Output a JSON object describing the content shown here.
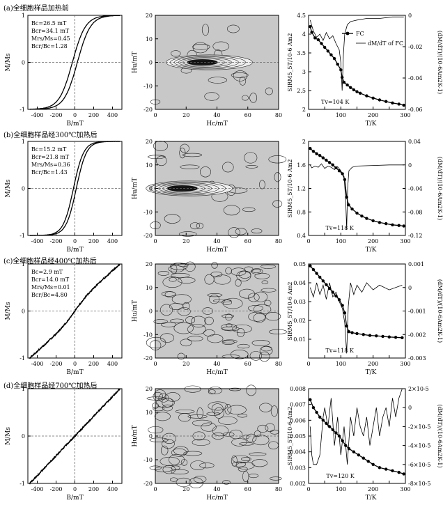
{
  "chart_data": [
    {
      "id": "a",
      "type": "line",
      "panel_title": "(a)全细胞样品加热前",
      "hysteresis": {
        "xlabel": "B/mT",
        "ylabel": "M/Ms",
        "xlim": [
          -500,
          500
        ],
        "ylim": [
          -1,
          1
        ],
        "xticks": [
          "-400",
          "-200",
          "0",
          "200",
          "400"
        ],
        "yticks": [
          "-1",
          "0",
          "1"
        ],
        "params": [
          "Bc=26.5 mT",
          "Bcr=34.1 mT",
          "Mrs/Ms=0.45",
          "Bcr/Bc=1.28"
        ],
        "Bc": 26.5,
        "Mr": 0.45,
        "linear": 0.0
      },
      "forc": {
        "xlabel": "Hc/mT",
        "ylabel": "Hu/mT",
        "xlim": [
          0,
          80
        ],
        "ylim": [
          -20,
          20
        ],
        "xticks": [
          "0",
          "20",
          "40",
          "60",
          "80"
        ],
        "yticks": [
          "-20",
          "-10",
          "0",
          "10",
          "20"
        ],
        "peak_hc": 35,
        "peak_hu": 0,
        "noise": 0.1
      },
      "lowtemp": {
        "xlabel": "T/K",
        "ylabel": "SIRM5_5T/10-6 Am2",
        "ylabel2": "(dM/dT)/(10-6Am2K-1)",
        "xlim": [
          0,
          300
        ],
        "ylim": [
          2,
          4.5
        ],
        "y2lim": [
          -0.06,
          0
        ],
        "xticks": [
          "0",
          "50",
          "100",
          "150",
          "200",
          "250",
          "300"
        ],
        "yticks": [
          "2",
          "2.5",
          "3",
          "3.5",
          "4",
          "4.5"
        ],
        "y2ticks": [
          "0",
          "-0.02",
          "-0.04",
          "-0.06"
        ],
        "legend": [
          "FC",
          "dM/dT of FC"
        ],
        "tv_label": "Tv=104 K",
        "Tv": 104,
        "fc": [
          [
            5,
            4.2
          ],
          [
            10,
            4.05
          ],
          [
            20,
            3.9
          ],
          [
            30,
            3.85
          ],
          [
            40,
            3.75
          ],
          [
            50,
            3.65
          ],
          [
            60,
            3.55
          ],
          [
            70,
            3.45
          ],
          [
            80,
            3.35
          ],
          [
            90,
            3.2
          ],
          [
            100,
            3.05
          ],
          [
            104,
            2.85
          ],
          [
            110,
            2.72
          ],
          [
            120,
            2.65
          ],
          [
            130,
            2.58
          ],
          [
            140,
            2.52
          ],
          [
            150,
            2.47
          ],
          [
            160,
            2.43
          ],
          [
            180,
            2.36
          ],
          [
            200,
            2.3
          ],
          [
            220,
            2.25
          ],
          [
            240,
            2.21
          ],
          [
            260,
            2.17
          ],
          [
            280,
            2.14
          ],
          [
            295,
            2.11
          ]
        ],
        "deriv": [
          [
            5,
            -0.003
          ],
          [
            15,
            -0.01
          ],
          [
            25,
            -0.014
          ],
          [
            35,
            -0.012
          ],
          [
            45,
            -0.016
          ],
          [
            55,
            -0.011
          ],
          [
            65,
            -0.015
          ],
          [
            75,
            -0.013
          ],
          [
            85,
            -0.018
          ],
          [
            95,
            -0.022
          ],
          [
            100,
            -0.03
          ],
          [
            104,
            -0.048
          ],
          [
            108,
            -0.025
          ],
          [
            112,
            -0.012
          ],
          [
            120,
            -0.006
          ],
          [
            130,
            -0.004
          ],
          [
            150,
            -0.003
          ],
          [
            180,
            -0.002
          ],
          [
            220,
            -0.002
          ],
          [
            260,
            -0.001
          ],
          [
            295,
            -0.001
          ]
        ]
      }
    },
    {
      "id": "b",
      "type": "line",
      "panel_title": "(b)全细胞样品经300℃加热后",
      "hysteresis": {
        "xlabel": "B/mT",
        "ylabel": "M/Ms",
        "xlim": [
          -500,
          500
        ],
        "ylim": [
          -1,
          1
        ],
        "xticks": [
          "-400",
          "-200",
          "0",
          "200",
          "400"
        ],
        "yticks": [
          "-1",
          "0",
          "1"
        ],
        "params": [
          "Bc=15.2 mT",
          "Bcr=21.8 mT",
          "Mrs/Ms=0.36",
          "Bcr/Bc=1.43"
        ],
        "Bc": 15.2,
        "Mr": 0.36,
        "linear": 0.0
      },
      "forc": {
        "xlabel": "Hc/mT",
        "ylabel": "Hu/mT",
        "xlim": [
          0,
          80
        ],
        "ylim": [
          -20,
          20
        ],
        "xticks": [
          "0",
          "20",
          "40",
          "60",
          "80"
        ],
        "yticks": [
          "-20",
          "-10",
          "0",
          "10",
          "20"
        ],
        "peak_hc": 22,
        "peak_hu": 0,
        "noise": 0.25
      },
      "lowtemp": {
        "xlabel": "T/K",
        "ylabel": "SIRM5_5T/10-6 Am2",
        "ylabel2": "(dM/dT)/(10-6Am2K-1)",
        "xlim": [
          0,
          300
        ],
        "ylim": [
          0.4,
          2
        ],
        "y2lim": [
          -0.12,
          0.04
        ],
        "xticks": [
          "0",
          "50",
          "100",
          "150",
          "200",
          "250",
          "300"
        ],
        "yticks": [
          "0.4",
          "0.8",
          "1.2",
          "1.6",
          "2"
        ],
        "y2ticks": [
          "0.04",
          "0",
          "-0.04",
          "-0.08",
          "-0.12"
        ],
        "legend": [],
        "tv_label": "Tv=118 K",
        "Tv": 118,
        "fc": [
          [
            5,
            1.88
          ],
          [
            15,
            1.83
          ],
          [
            25,
            1.79
          ],
          [
            35,
            1.76
          ],
          [
            45,
            1.72
          ],
          [
            55,
            1.68
          ],
          [
            65,
            1.64
          ],
          [
            75,
            1.6
          ],
          [
            85,
            1.55
          ],
          [
            95,
            1.5
          ],
          [
            105,
            1.45
          ],
          [
            112,
            1.35
          ],
          [
            118,
            1.05
          ],
          [
            124,
            0.92
          ],
          [
            135,
            0.85
          ],
          [
            150,
            0.78
          ],
          [
            165,
            0.73
          ],
          [
            180,
            0.69
          ],
          [
            200,
            0.65
          ],
          [
            220,
            0.62
          ],
          [
            240,
            0.6
          ],
          [
            260,
            0.58
          ],
          [
            280,
            0.57
          ],
          [
            295,
            0.56
          ]
        ],
        "deriv": [
          [
            5,
            0.0
          ],
          [
            10,
            -0.005
          ],
          [
            20,
            -0.002
          ],
          [
            30,
            -0.004
          ],
          [
            40,
            0.002
          ],
          [
            50,
            -0.006
          ],
          [
            60,
            -0.002
          ],
          [
            70,
            -0.004
          ],
          [
            80,
            -0.008
          ],
          [
            90,
            -0.003
          ],
          [
            100,
            -0.01
          ],
          [
            110,
            -0.02
          ],
          [
            115,
            -0.06
          ],
          [
            118,
            -0.11
          ],
          [
            121,
            -0.04
          ],
          [
            125,
            -0.01
          ],
          [
            135,
            -0.004
          ],
          [
            150,
            -0.002
          ],
          [
            200,
            -0.001
          ],
          [
            250,
            0.0
          ],
          [
            295,
            0.0
          ]
        ]
      }
    },
    {
      "id": "c",
      "type": "line",
      "panel_title": "(c)全细胞样品经400℃加热后",
      "hysteresis": {
        "xlabel": "B/mT",
        "ylabel": "M/Ms",
        "xlim": [
          -500,
          500
        ],
        "ylim": [
          -1,
          1
        ],
        "xticks": [
          "-400",
          "-200",
          "0",
          "200",
          "400"
        ],
        "yticks": [
          "-1",
          "0",
          "1"
        ],
        "params": [
          "Bc=2.9 mT",
          "Bcr=14.0 mT",
          "Mrs/Ms=0.01",
          "Bcr/Bc=4.80"
        ],
        "Bc": 2.9,
        "Mr": 0.01,
        "linear": 0.85
      },
      "forc": {
        "xlabel": "Hc/mT",
        "ylabel": "Hu/mT",
        "xlim": [
          0,
          80
        ],
        "ylim": [
          -20,
          20
        ],
        "xticks": [
          "0",
          "20",
          "40",
          "60",
          "80"
        ],
        "yticks": [
          "-20",
          "-10",
          "0",
          "10",
          "20"
        ],
        "peak_hc": null,
        "peak_hu": null,
        "noise": 1
      },
      "lowtemp": {
        "xlabel": "T/K",
        "ylabel": "SIRM5_5T/10-6 Am2",
        "ylabel2": "(dM/dT)/(10-6Am2K-1)",
        "xlim": [
          0,
          300
        ],
        "ylim": [
          0,
          0.05
        ],
        "y2lim": [
          -0.003,
          0.001
        ],
        "xticks": [
          "0",
          "50",
          "100",
          "150",
          "200",
          "250",
          "300"
        ],
        "yticks": [
          "0.01",
          "0.02",
          "0.03",
          "0.04",
          "0.05"
        ],
        "y2ticks": [
          "0.001",
          "0",
          "-0.001",
          "-0.002",
          "-0.003"
        ],
        "legend": [],
        "tv_label": "Tv=118 K",
        "Tv": 118,
        "fc": [
          [
            5,
            0.049
          ],
          [
            15,
            0.047
          ],
          [
            25,
            0.045
          ],
          [
            35,
            0.043
          ],
          [
            45,
            0.041
          ],
          [
            55,
            0.039
          ],
          [
            65,
            0.037
          ],
          [
            75,
            0.035
          ],
          [
            85,
            0.033
          ],
          [
            95,
            0.031
          ],
          [
            105,
            0.028
          ],
          [
            112,
            0.024
          ],
          [
            118,
            0.017
          ],
          [
            125,
            0.014
          ],
          [
            135,
            0.0135
          ],
          [
            150,
            0.013
          ],
          [
            170,
            0.0125
          ],
          [
            190,
            0.012
          ],
          [
            210,
            0.0118
          ],
          [
            230,
            0.0115
          ],
          [
            250,
            0.0112
          ],
          [
            270,
            0.011
          ],
          [
            290,
            0.0108
          ]
        ],
        "deriv": [
          [
            5,
            0.0
          ],
          [
            15,
            -0.0004
          ],
          [
            25,
            0.0002
          ],
          [
            35,
            -0.0003
          ],
          [
            45,
            0.0001
          ],
          [
            55,
            -0.0005
          ],
          [
            65,
            0.0002
          ],
          [
            75,
            -0.0004
          ],
          [
            85,
            -0.0002
          ],
          [
            95,
            -0.0006
          ],
          [
            105,
            -0.0009
          ],
          [
            112,
            -0.0015
          ],
          [
            118,
            -0.0028
          ],
          [
            123,
            -0.0008
          ],
          [
            130,
            0.0002
          ],
          [
            140,
            -0.0003
          ],
          [
            150,
            0.0001
          ],
          [
            165,
            -0.0002
          ],
          [
            180,
            0.0002
          ],
          [
            200,
            -0.0001
          ],
          [
            220,
            0.0001
          ],
          [
            250,
            -0.0001
          ],
          [
            290,
            0.0001
          ]
        ]
      }
    },
    {
      "id": "d",
      "type": "line",
      "panel_title": "(d)全细胞样品经700℃加热后",
      "hysteresis": {
        "xlabel": "B/mT",
        "ylabel": "M/Ms",
        "xlim": [
          -500,
          500
        ],
        "ylim": [
          -1,
          1
        ],
        "xticks": [
          "-400",
          "-200",
          "0",
          "200",
          "400"
        ],
        "yticks": [
          "-1",
          "0",
          "1"
        ],
        "params": [],
        "Bc": 0,
        "Mr": 0,
        "linear": 1.0
      },
      "forc": {
        "xlabel": "Hc/mT",
        "ylabel": "Hu/mT",
        "xlim": [
          0,
          80
        ],
        "ylim": [
          -20,
          20
        ],
        "xticks": [
          "0",
          "20",
          "40",
          "60",
          "80"
        ],
        "yticks": [
          "-20",
          "-10",
          "0",
          "10",
          "20"
        ],
        "peak_hc": null,
        "peak_hu": null,
        "noise": 1
      },
      "lowtemp": {
        "xlabel": "T/K",
        "ylabel": "SIRM5_5T/10-6 Am2",
        "ylabel2": "(dM/dT)/(10-6Am2K-1)",
        "xlim": [
          0,
          300
        ],
        "ylim": [
          0.002,
          0.008
        ],
        "y2lim": [
          -8e-05,
          2e-05
        ],
        "xticks": [
          "0",
          "50",
          "100",
          "150",
          "200",
          "250",
          "300"
        ],
        "yticks": [
          "0.002",
          "0.003",
          "0.004",
          "0.005",
          "0.006",
          "0.007",
          "0.008"
        ],
        "y2ticks": [
          "2×10-5",
          "0",
          "-2×10-5",
          "-4×10-5",
          "-6×10-5",
          "-8×10-5"
        ],
        "legend": [],
        "tv_label": "Tv=120 K",
        "Tv": 120,
        "fc": [
          [
            5,
            0.0073
          ],
          [
            15,
            0.0068
          ],
          [
            25,
            0.0065
          ],
          [
            35,
            0.0062
          ],
          [
            45,
            0.006
          ],
          [
            55,
            0.0058
          ],
          [
            65,
            0.0056
          ],
          [
            75,
            0.0054
          ],
          [
            85,
            0.0052
          ],
          [
            95,
            0.005
          ],
          [
            105,
            0.0047
          ],
          [
            115,
            0.0044
          ],
          [
            125,
            0.0042
          ],
          [
            140,
            0.004
          ],
          [
            155,
            0.0038
          ],
          [
            170,
            0.0036
          ],
          [
            185,
            0.0034
          ],
          [
            200,
            0.0032
          ],
          [
            220,
            0.003
          ],
          [
            240,
            0.0029
          ],
          [
            260,
            0.0028
          ],
          [
            280,
            0.0027
          ],
          [
            295,
            0.0026
          ]
        ],
        "deriv": [
          [
            5,
            -2e-05
          ],
          [
            10,
            -5e-05
          ],
          [
            15,
            -6e-05
          ],
          [
            25,
            -6e-05
          ],
          [
            35,
            -5e-05
          ],
          [
            45,
            -1e-05
          ],
          [
            50,
            0.0
          ],
          [
            60,
            -2e-05
          ],
          [
            70,
            1e-05
          ],
          [
            80,
            -4e-05
          ],
          [
            90,
            -1e-05
          ],
          [
            100,
            -5e-05
          ],
          [
            110,
            -2e-05
          ],
          [
            120,
            -6e-05
          ],
          [
            130,
            -1e-05
          ],
          [
            140,
            -3e-05
          ],
          [
            150,
            0.0
          ],
          [
            160,
            -2e-05
          ],
          [
            170,
            -3e-05
          ],
          [
            180,
            -1e-05
          ],
          [
            190,
            -4e-05
          ],
          [
            200,
            -2e-05
          ],
          [
            210,
            0.0
          ],
          [
            220,
            -3e-05
          ],
          [
            230,
            -1e-05
          ],
          [
            240,
            0.0
          ],
          [
            250,
            -2e-05
          ],
          [
            260,
            1e-05
          ],
          [
            270,
            -1e-05
          ],
          [
            280,
            1e-05
          ],
          [
            290,
            2e-05
          ]
        ]
      }
    }
  ]
}
